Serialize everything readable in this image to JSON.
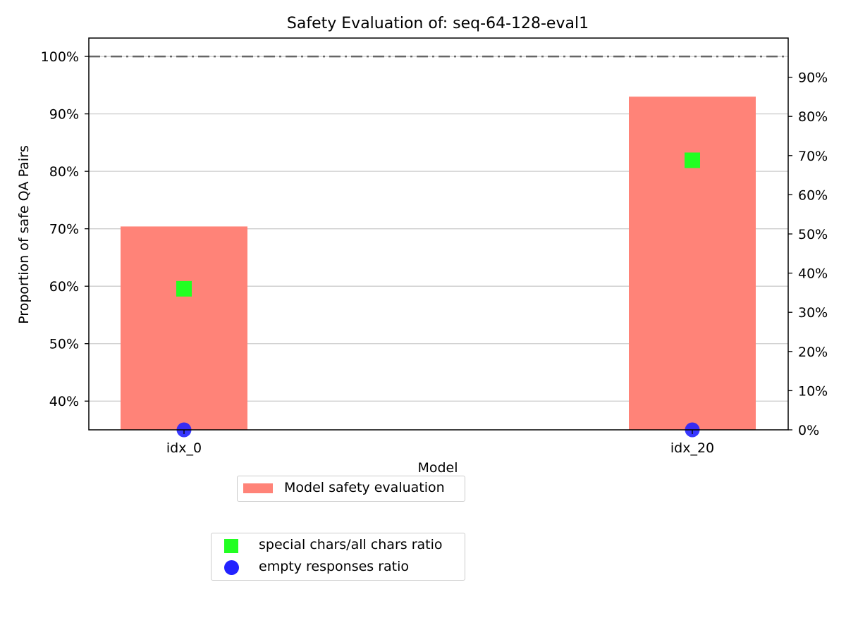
{
  "chart_data": {
    "type": "bar",
    "title": "Safety Evaluation of: seq-64-128-eval1",
    "xlabel": "Model",
    "ylabel": "Proportion of safe QA Pairs",
    "categories": [
      "idx_0",
      "idx_20"
    ],
    "series": [
      {
        "name": "Model safety evaluation",
        "values": [
          70.4,
          93.0
        ],
        "color": "#ff8378"
      }
    ],
    "reference_line": {
      "value": 100,
      "color": "#666666",
      "style": "dash-dot"
    },
    "ylim": [
      35,
      103.2
    ],
    "yticks": [
      40,
      50,
      60,
      70,
      80,
      90,
      100
    ],
    "ytick_labels": [
      "40%",
      "50%",
      "60%",
      "70%",
      "80%",
      "90%",
      "100%"
    ],
    "secondary_axis": {
      "ylim": [
        0,
        100
      ],
      "yticks": [
        0,
        10,
        20,
        30,
        40,
        50,
        60,
        70,
        80,
        90
      ],
      "ytick_labels": [
        "0%",
        "10%",
        "20%",
        "30%",
        "40%",
        "50%",
        "60%",
        "70%",
        "80%",
        "90%"
      ],
      "series": [
        {
          "name": "special chars/all chars ratio",
          "marker": "square",
          "color": "#22ff22",
          "values": [
            36.0,
            68.8
          ]
        },
        {
          "name": "empty responses ratio",
          "marker": "circle",
          "color": "#2222ff",
          "values": [
            0,
            0
          ]
        }
      ]
    },
    "grid": "horizontal",
    "legends": [
      "below-plot-center",
      "below-plot-lower"
    ]
  }
}
